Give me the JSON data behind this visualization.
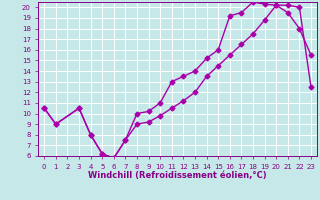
{
  "xlabel": "Windchill (Refroidissement éolien,°C)",
  "xlim": [
    -0.5,
    23.5
  ],
  "ylim": [
    6,
    20.5
  ],
  "xticks": [
    0,
    1,
    2,
    3,
    4,
    5,
    6,
    7,
    8,
    9,
    10,
    11,
    12,
    13,
    14,
    15,
    16,
    17,
    18,
    19,
    20,
    21,
    22,
    23
  ],
  "yticks": [
    6,
    7,
    8,
    9,
    10,
    11,
    12,
    13,
    14,
    15,
    16,
    17,
    18,
    19,
    20
  ],
  "background_color": "#c6e8e8",
  "grid_color": "#ffffff",
  "line_color": "#aa00aa",
  "curve1_x": [
    0,
    1,
    3,
    4,
    5,
    6,
    7,
    8,
    9,
    10,
    11,
    12,
    13,
    14,
    15,
    16,
    17,
    18,
    19,
    20,
    21,
    22,
    23
  ],
  "curve1_y": [
    10.5,
    9.0,
    10.5,
    8.0,
    6.2,
    5.8,
    7.5,
    10.0,
    10.2,
    11.0,
    13.0,
    13.5,
    14.0,
    15.2,
    16.0,
    19.2,
    19.5,
    20.5,
    20.3,
    20.2,
    19.5,
    18.0,
    15.5
  ],
  "curve2_x": [
    0,
    1,
    3,
    4,
    5,
    6,
    7,
    8,
    9,
    10,
    11,
    12,
    13,
    14,
    15,
    16,
    17,
    18,
    19,
    20,
    21,
    22,
    23
  ],
  "curve2_y": [
    10.5,
    9.0,
    10.5,
    8.0,
    6.2,
    5.8,
    7.5,
    9.0,
    9.2,
    9.8,
    10.5,
    11.2,
    12.0,
    13.5,
    14.5,
    15.5,
    16.5,
    17.5,
    18.8,
    20.2,
    20.2,
    20.0,
    12.5
  ],
  "marker": "D",
  "markersize": 2.5,
  "linewidth": 1.0,
  "tick_fontsize": 5,
  "label_fontsize": 6,
  "label_fontweight": "bold"
}
